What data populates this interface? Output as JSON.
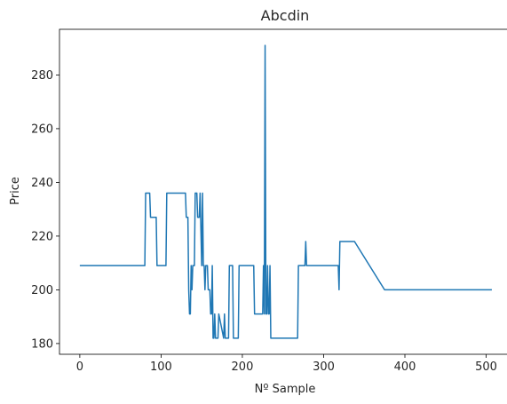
{
  "chart_data": {
    "type": "line",
    "title": "Abcdin",
    "xlabel": "Nº Sample",
    "ylabel": "Price",
    "xlim": [
      -25,
      530
    ],
    "ylim": [
      176,
      297
    ],
    "xticks": [
      0,
      100,
      200,
      300,
      400,
      500
    ],
    "yticks": [
      180,
      200,
      220,
      240,
      260,
      280
    ],
    "grid": false,
    "series": [
      {
        "color": "#1f77b4",
        "x": [
          0,
          80,
          81,
          86,
          87,
          94,
          95,
          106,
          107,
          130,
          131,
          133,
          134,
          135,
          136,
          137,
          138,
          139,
          141,
          142,
          144,
          145,
          147,
          148,
          150,
          151,
          152,
          153,
          154,
          155,
          157,
          158,
          160,
          161,
          162,
          163,
          164,
          165,
          166,
          167,
          170,
          171,
          177,
          178,
          179,
          180,
          183,
          184,
          188,
          189,
          195,
          196,
          214,
          215,
          225,
          226,
          227,
          228,
          229,
          230,
          231,
          232,
          233,
          234,
          235,
          236,
          268,
          269,
          277,
          278,
          279,
          280,
          318,
          319,
          320,
          321,
          338,
          375,
          507
        ],
        "y": [
          209,
          209,
          236,
          236,
          227,
          227,
          209,
          209,
          236,
          236,
          227,
          227,
          200,
          191,
          191,
          209,
          200,
          209,
          209,
          236,
          236,
          227,
          227,
          236,
          209,
          236,
          209,
          209,
          200,
          209,
          209,
          200,
          200,
          191,
          191,
          209,
          182,
          182,
          191,
          182,
          182,
          191,
          182,
          191,
          182,
          182,
          182,
          209,
          209,
          182,
          182,
          209,
          209,
          191,
          191,
          209,
          191,
          291,
          191,
          191,
          209,
          191,
          191,
          209,
          182,
          182,
          182,
          209,
          209,
          218,
          209,
          209,
          209,
          200,
          218,
          218,
          218,
          200,
          200
        ]
      }
    ]
  }
}
